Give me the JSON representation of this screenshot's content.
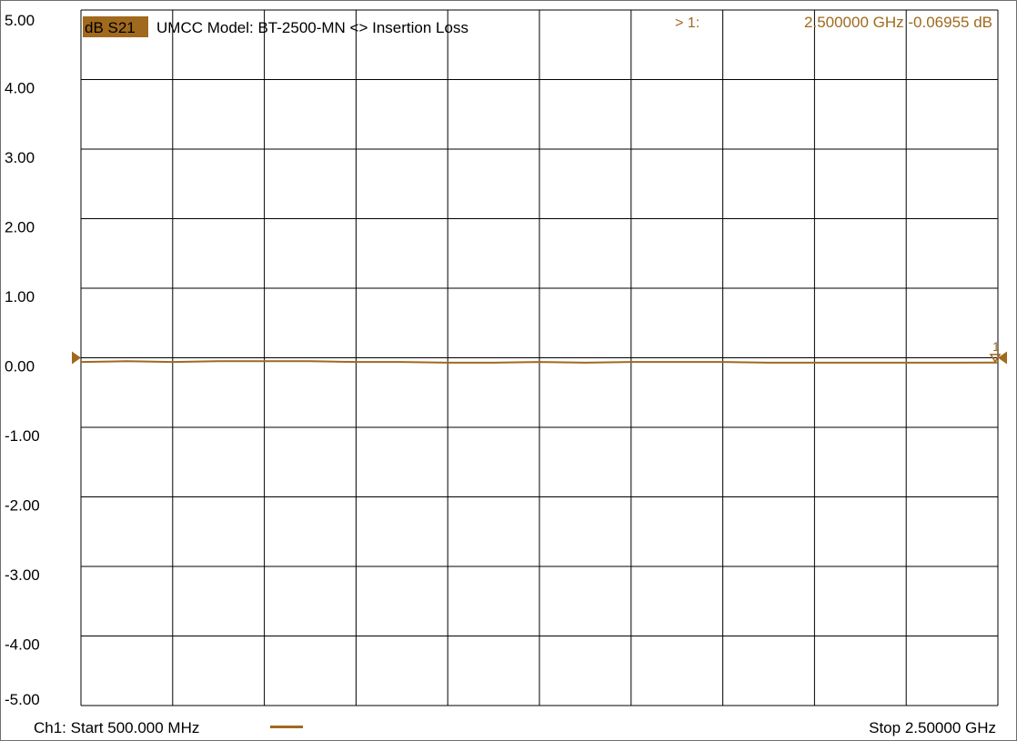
{
  "header": {
    "trace_label": "dB S21",
    "title": "UMCC  Model: BT-2500-MN <> Insertion Loss",
    "marker_label": "> 1:",
    "marker_readout": "2.500000 GHz -0.06955 dB"
  },
  "footer": {
    "start_label": "Ch1: Start  500.000 MHz",
    "stop_label": "Stop  2.50000 GHz"
  },
  "colors": {
    "trace": "#a0691e",
    "label_bg": "#a0691e",
    "grid": "#000000"
  },
  "chart_data": {
    "type": "line",
    "title": "UMCC  Model: BT-2500-MN <> Insertion Loss",
    "xlabel": "",
    "ylabel": "",
    "xlim": [
      0.5,
      2.5
    ],
    "ylim": [
      -5,
      5
    ],
    "x_unit": "GHz",
    "y_unit": "dB",
    "grid": true,
    "x_divisions": 10,
    "y_tick_labels": [
      "5.00",
      "4.00",
      "3.00",
      "2.00",
      "1.00",
      "0.00",
      "-1.00",
      "-2.00",
      "-3.00",
      "-4.00",
      "-5.00"
    ],
    "marker": {
      "label": "1",
      "x": 2.5,
      "y": -0.06955
    },
    "series": [
      {
        "x": [
          0.5,
          0.6,
          0.7,
          0.8,
          0.9,
          1.0,
          1.1,
          1.2,
          1.3,
          1.4,
          1.5,
          1.6,
          1.7,
          1.8,
          1.9,
          2.0,
          2.1,
          2.2,
          2.3,
          2.4,
          2.5
        ],
        "values": [
          -0.06,
          -0.05,
          -0.06,
          -0.05,
          -0.05,
          -0.05,
          -0.06,
          -0.06,
          -0.07,
          -0.07,
          -0.06,
          -0.07,
          -0.06,
          -0.06,
          -0.06,
          -0.07,
          -0.07,
          -0.07,
          -0.07,
          -0.07,
          -0.06955
        ]
      }
    ]
  }
}
